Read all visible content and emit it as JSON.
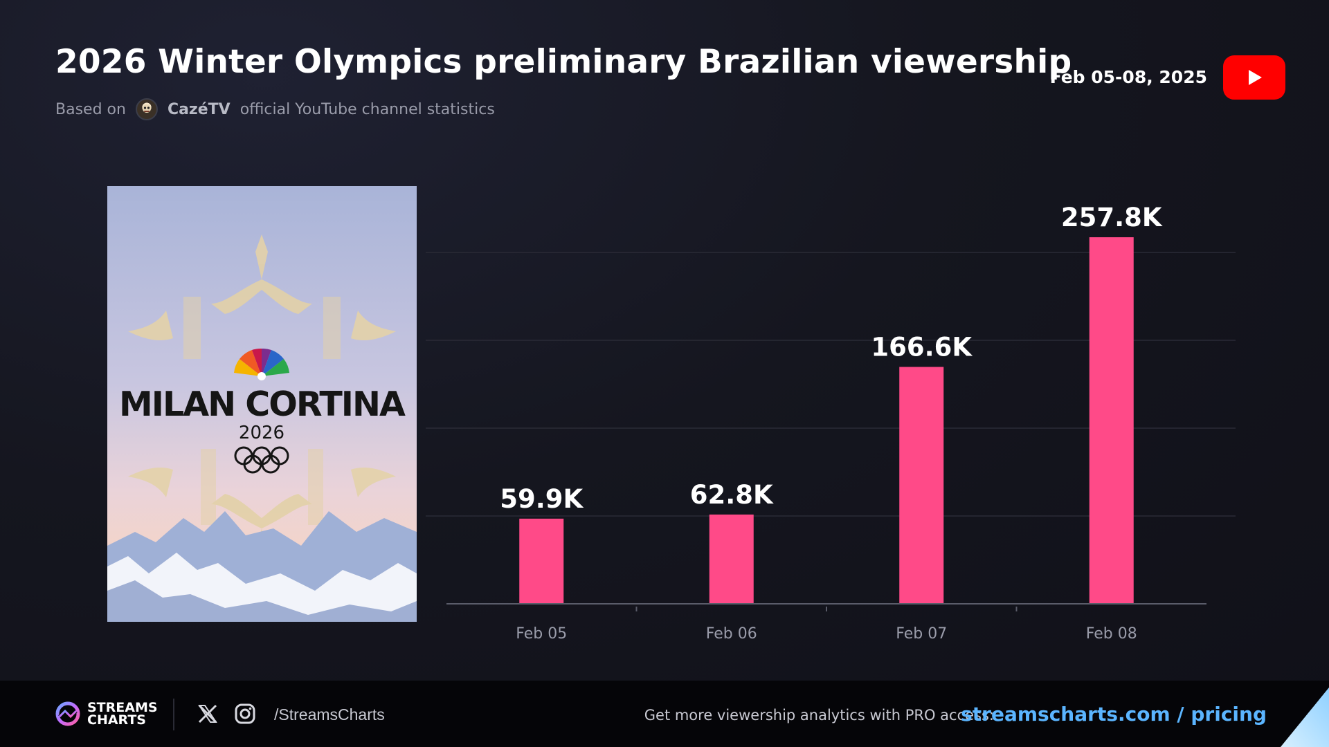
{
  "header": {
    "title": "2026 Winter Olympics preliminary Brazilian viewership",
    "subtitle_prefix": "Based on",
    "channel_name": "CazéTV",
    "subtitle_suffix": "official YouTube channel statistics",
    "date_range": "Feb 05-08, 2025",
    "platform_icon": "youtube-icon"
  },
  "poster": {
    "logo_text": "MILAN CORTINA",
    "year": "2026"
  },
  "chart_data": {
    "type": "bar",
    "categories": [
      "Feb 05",
      "Feb 06",
      "Feb 07",
      "Feb 08"
    ],
    "values": [
      59.9,
      62.8,
      166.6,
      257.8
    ],
    "value_labels": [
      "59.9K",
      "62.8K",
      "166.6K",
      "257.8K"
    ],
    "unit": "K",
    "ylim": [
      0,
      290
    ],
    "grid": true,
    "bar_color": "#ff4a88"
  },
  "footer": {
    "brand_line1": "STREAMS",
    "brand_line2": "CHARTS",
    "handle": "/StreamsCharts",
    "promo_text": "Get more viewership analytics with PRO access:",
    "promo_link": "streamscharts.com / pricing",
    "link_color": "#5bb5ff"
  }
}
